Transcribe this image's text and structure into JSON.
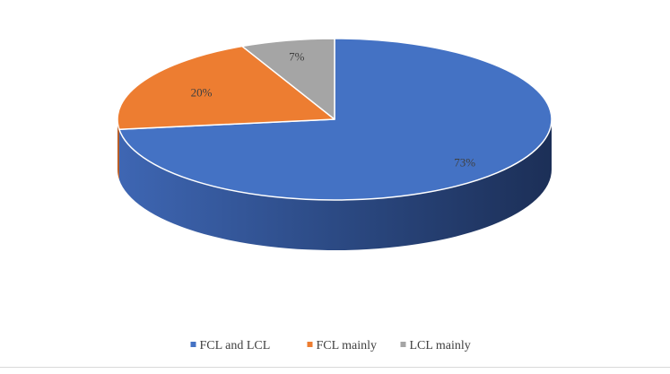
{
  "chart_data": {
    "type": "pie",
    "title": "",
    "categories": [
      "FCL and LCL",
      "FCL mainly",
      "LCL mainly"
    ],
    "values": [
      73,
      20,
      7
    ],
    "labels": [
      "73%",
      "20%",
      "7%"
    ],
    "colors": [
      "#4472C4",
      "#ED7D31",
      "#A5A5A5"
    ],
    "side_colors": [
      "#2F4E8C",
      "#B5561E",
      "#737373"
    ],
    "legend": {
      "position": "bottom",
      "entries": [
        "FCL and LCL",
        "FCL mainly",
        "LCL mainly"
      ]
    }
  }
}
